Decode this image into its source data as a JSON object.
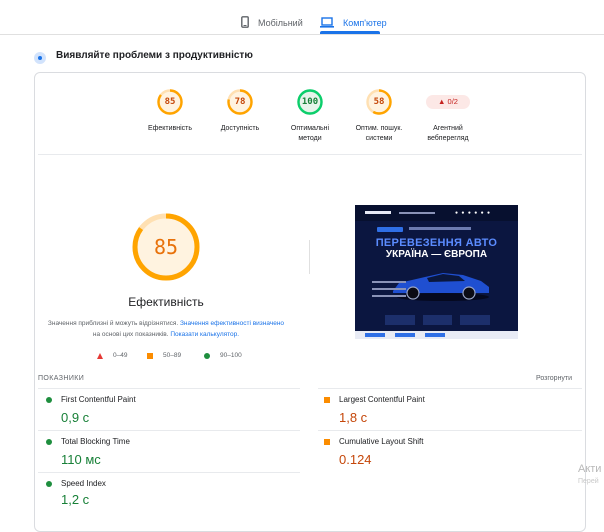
{
  "tabs": {
    "mobile": {
      "label": "Мобільний",
      "icon": "phone-icon"
    },
    "desktop": {
      "label": "Комп'ютер",
      "icon": "laptop-icon"
    }
  },
  "diagnose": {
    "title": "Виявляйте проблеми з продуктивністю",
    "icon": "diagnose-icon"
  },
  "categories": [
    {
      "score": "85",
      "label1": "Ефективність",
      "label2": "",
      "status": "average",
      "fraction": 0.85
    },
    {
      "score": "78",
      "label1": "Доступність",
      "label2": "",
      "status": "average",
      "fraction": 0.78
    },
    {
      "score": "100",
      "label1": "Оптимальні",
      "label2": "методи",
      "status": "pass",
      "fraction": 1.0
    },
    {
      "score": "58",
      "label1": "Оптим. пошук.",
      "label2": "системи",
      "status": "average",
      "fraction": 0.58
    }
  ],
  "agentic": {
    "value": "▲ 0/2",
    "label1": "Агентний",
    "label2": "вебперегляд"
  },
  "performance": {
    "score": "85",
    "fraction": 0.85,
    "label": "Ефективність",
    "note_prefix": "Значення приблизні й можуть відрізнятися. ",
    "note_link1": "Значення ефективності визначено",
    "note_middle": " на основі цих показників. ",
    "note_link2": "Показати калькулятор."
  },
  "legend": [
    {
      "range": "0–49",
      "shape": "triangle",
      "color": "#e53935"
    },
    {
      "range": "50–89",
      "shape": "square",
      "color": "#fb8c00"
    },
    {
      "range": "90–100",
      "shape": "circle",
      "color": "#1e8e3e"
    }
  ],
  "screenshot": {
    "title1": "ПЕРЕВЕЗЕННЯ АВТО",
    "title2": "УКРАЇНА — ЄВРОПА"
  },
  "metrics": {
    "title": "ПОКАЗНИКИ",
    "expand": "Розгорнути",
    "items": [
      {
        "name": "First Contentful Paint",
        "value": "0,9 с",
        "status": "pass"
      },
      {
        "name": "Largest Contentful Paint",
        "value": "1,8 с",
        "status": "average"
      },
      {
        "name": "Total Blocking Time",
        "value": "110 мс",
        "status": "pass"
      },
      {
        "name": "Cumulative Layout Shift",
        "value": "0.124",
        "status": "average"
      },
      {
        "name": "Speed Index",
        "value": "1,2 с",
        "status": "pass"
      }
    ]
  },
  "watermark": {
    "line1": "Акти",
    "line2": "Перей"
  },
  "colors": {
    "pass": "#0cce6b",
    "average": "#ffa400",
    "fail": "#ff4e42",
    "link": "#1a73e8"
  }
}
